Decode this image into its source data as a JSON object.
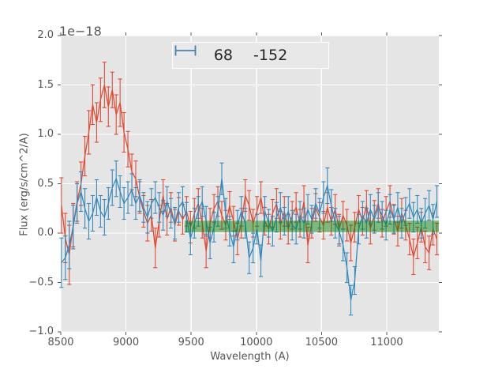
{
  "figure": {
    "background": "#ffffff",
    "axes_background": "#e5e5e5",
    "grid_color": "#ffffff",
    "tick_color": "#555555",
    "label_color": "#555555"
  },
  "chart_data": {
    "type": "line",
    "marker": "errorbar",
    "title": "",
    "xlabel": "Wavelength (A)",
    "ylabel": "Flux (erg/s/cm^2/A)",
    "offset_text": "1e−18",
    "xlim": [
      8500,
      11400
    ],
    "ylim": [
      -1.0,
      2.0
    ],
    "grid": true,
    "xticks": [
      8500,
      9000,
      9500,
      10000,
      10500,
      11000
    ],
    "xtick_labels": [
      "8500",
      "9000",
      "9500",
      "10000",
      "10500",
      "11000"
    ],
    "yticks": [
      -1.0,
      -0.5,
      0.0,
      0.5,
      1.0,
      1.5,
      2.0
    ],
    "ytick_labels": [
      "−1.0",
      "−0.5",
      "0.0",
      "0.5",
      "1.0",
      "1.5",
      "2.0"
    ],
    "legend": {
      "position": "upper center",
      "entries": [
        {
          "label": "68",
          "color": "#e24a33"
        },
        {
          "label": "-152",
          "color": "#348abd"
        }
      ]
    },
    "band": {
      "x_start": 9450,
      "x_end": 11400,
      "y_low": 0.01,
      "y_high": 0.125,
      "color": "#008000",
      "opacity": 0.45
    },
    "x": [
      8505,
      8535,
      8565,
      8595,
      8625,
      8655,
      8685,
      8715,
      8745,
      8775,
      8805,
      8835,
      8865,
      8895,
      8925,
      8955,
      8985,
      9015,
      9045,
      9075,
      9105,
      9135,
      9165,
      9195,
      9225,
      9255,
      9285,
      9315,
      9345,
      9375,
      9405,
      9435,
      9465,
      9495,
      9525,
      9555,
      9585,
      9615,
      9645,
      9675,
      9705,
      9735,
      9765,
      9795,
      9825,
      9855,
      9885,
      9915,
      9945,
      9975,
      10005,
      10035,
      10065,
      10095,
      10125,
      10155,
      10185,
      10215,
      10245,
      10275,
      10305,
      10335,
      10365,
      10395,
      10425,
      10455,
      10485,
      10515,
      10545,
      10575,
      10605,
      10635,
      10665,
      10695,
      10725,
      10755,
      10785,
      10815,
      10845,
      10875,
      10905,
      10935,
      10965,
      10995,
      11025,
      11055,
      11085,
      11115,
      11145,
      11175,
      11205,
      11235,
      11265,
      11295,
      11325,
      11355,
      11385
    ],
    "series": [
      {
        "name": "68",
        "color": "#e24a33",
        "y": [
          0.28,
          -0.05,
          -0.22,
          0.08,
          0.32,
          0.5,
          0.78,
          1.02,
          1.3,
          1.12,
          1.35,
          1.5,
          1.28,
          1.45,
          1.2,
          1.32,
          1.02,
          0.85,
          0.62,
          0.55,
          0.36,
          0.22,
          0.1,
          0.18,
          -0.15,
          0.12,
          0.38,
          0.14,
          0.26,
          0.08,
          0.22,
          0.14,
          0.22,
          0.06,
          0.2,
          0.3,
          0.1,
          -0.18,
          0.1,
          0.25,
          0.32,
          0.18,
          0.08,
          0.28,
          0.12,
          -0.06,
          0.1,
          0.38,
          0.28,
          0.1,
          0.22,
          0.36,
          0.12,
          0.04,
          0.2,
          0.3,
          0.08,
          0.22,
          0.04,
          0.18,
          0.26,
          0.1,
          0.32,
          -0.12,
          0.1,
          0.26,
          0.16,
          0.08,
          0.26,
          0.12,
          0.24,
          0.04,
          0.18,
          0.08,
          -0.1,
          0.06,
          0.24,
          0.12,
          0.28,
          0.05,
          0.18,
          0.3,
          0.1,
          0.22,
          0.32,
          0.14,
          0.02,
          0.2,
          0.08,
          -0.06,
          -0.24,
          -0.1,
          0.06,
          -0.14,
          -0.2,
          0.04,
          -0.06
        ],
        "yerr": [
          0.28,
          0.25,
          0.3,
          0.22,
          0.2,
          0.22,
          0.2,
          0.22,
          0.2,
          0.2,
          0.22,
          0.23,
          0.2,
          0.18,
          0.2,
          0.24,
          0.2,
          0.18,
          0.18,
          0.18,
          0.16,
          0.16,
          0.18,
          0.16,
          0.2,
          0.16,
          0.16,
          0.16,
          0.15,
          0.16,
          0.14,
          0.15,
          0.15,
          0.16,
          0.15,
          0.15,
          0.15,
          0.17,
          0.15,
          0.14,
          0.15,
          0.14,
          0.15,
          0.14,
          0.15,
          0.16,
          0.15,
          0.16,
          0.15,
          0.14,
          0.15,
          0.16,
          0.14,
          0.15,
          0.14,
          0.15,
          0.14,
          0.15,
          0.15,
          0.14,
          0.15,
          0.14,
          0.16,
          0.18,
          0.15,
          0.14,
          0.15,
          0.14,
          0.15,
          0.14,
          0.15,
          0.15,
          0.14,
          0.16,
          0.18,
          0.15,
          0.14,
          0.14,
          0.15,
          0.16,
          0.15,
          0.15,
          0.14,
          0.15,
          0.16,
          0.15,
          0.15,
          0.15,
          0.15,
          0.16,
          0.18,
          0.16,
          0.15,
          0.16,
          0.17,
          0.16,
          0.16
        ]
      },
      {
        "name": "-152",
        "color": "#348abd",
        "y": [
          -0.3,
          -0.25,
          -0.12,
          0.06,
          0.3,
          0.42,
          0.25,
          0.12,
          0.2,
          0.36,
          0.22,
          0.16,
          0.3,
          0.46,
          0.55,
          0.42,
          0.3,
          0.36,
          0.44,
          0.3,
          0.38,
          0.26,
          0.16,
          0.3,
          0.36,
          0.26,
          0.18,
          0.32,
          0.2,
          0.1,
          0.26,
          0.32,
          0.16,
          -0.06,
          0.1,
          0.22,
          0.32,
          0.12,
          -0.1,
          0.06,
          0.22,
          0.55,
          0.2,
          0.02,
          -0.14,
          0.08,
          0.22,
          0.1,
          -0.25,
          -0.15,
          0.04,
          -0.28,
          0.22,
          0.1,
          0.02,
          0.16,
          0.26,
          0.12,
          0.22,
          0.08,
          0.04,
          0.18,
          0.1,
          0.24,
          0.14,
          0.3,
          0.2,
          0.36,
          0.48,
          0.28,
          0.1,
          0.02,
          -0.12,
          -0.35,
          -0.68,
          -0.48,
          0.04,
          0.18,
          0.1,
          0.24,
          0.14,
          0.26,
          0.18,
          0.08,
          0.24,
          0.14,
          0.26,
          0.1,
          0.22,
          0.3,
          0.16,
          0.24,
          0.1,
          0.2,
          0.28,
          0.14,
          0.32
        ],
        "yerr": [
          0.25,
          0.22,
          0.24,
          0.22,
          0.2,
          0.2,
          0.2,
          0.18,
          0.18,
          0.18,
          0.16,
          0.18,
          0.16,
          0.18,
          0.18,
          0.16,
          0.16,
          0.16,
          0.16,
          0.16,
          0.16,
          0.15,
          0.16,
          0.15,
          0.16,
          0.15,
          0.15,
          0.15,
          0.15,
          0.16,
          0.15,
          0.15,
          0.15,
          0.16,
          0.15,
          0.15,
          0.15,
          0.15,
          0.16,
          0.15,
          0.15,
          0.16,
          0.15,
          0.15,
          0.16,
          0.15,
          0.15,
          0.15,
          0.16,
          0.15,
          0.15,
          0.16,
          0.15,
          0.14,
          0.15,
          0.15,
          0.15,
          0.14,
          0.15,
          0.15,
          0.15,
          0.14,
          0.15,
          0.15,
          0.14,
          0.15,
          0.15,
          0.16,
          0.18,
          0.16,
          0.15,
          0.15,
          0.16,
          0.15,
          0.15,
          0.14,
          0.15,
          0.14,
          0.15,
          0.15,
          0.14,
          0.15,
          0.14,
          0.15,
          0.15,
          0.14,
          0.15,
          0.15,
          0.14,
          0.15,
          0.15,
          0.14,
          0.15,
          0.15,
          0.15,
          0.15,
          0.16
        ]
      }
    ]
  }
}
